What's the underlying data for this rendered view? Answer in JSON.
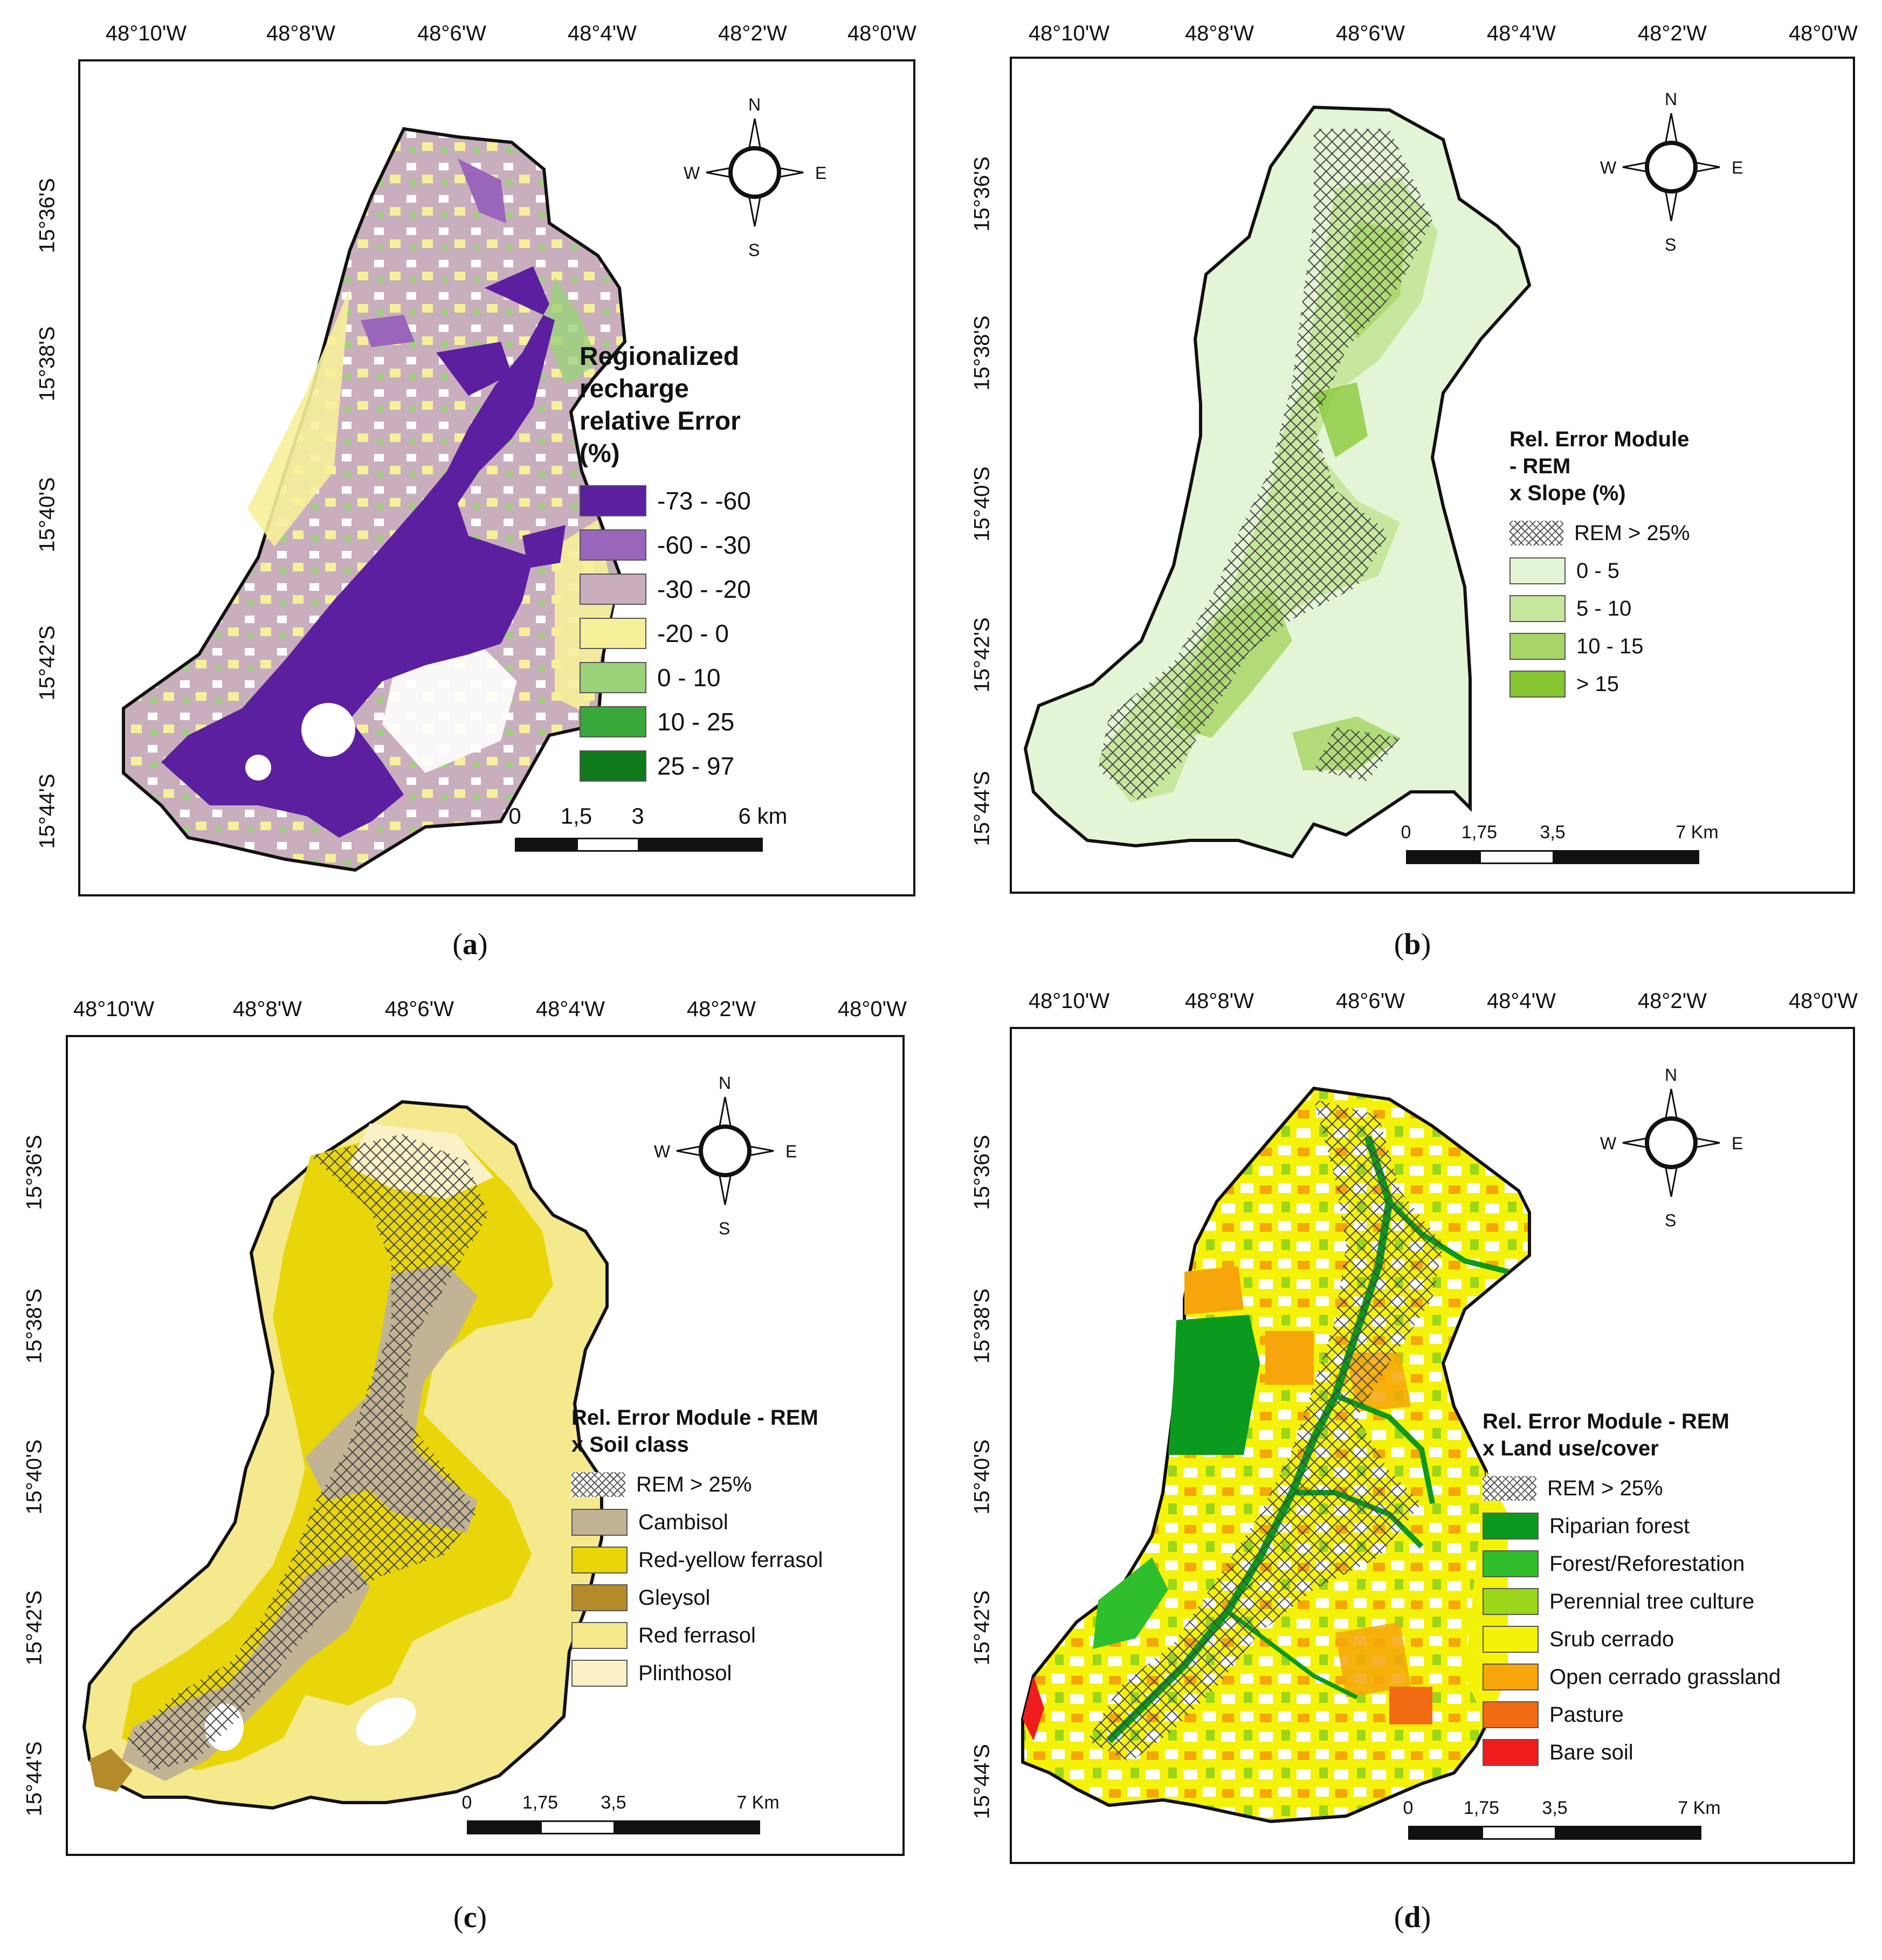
{
  "figure": {
    "longitude_ticks": [
      "48°10'W",
      "48°8'W",
      "48°6'W",
      "48°4'W",
      "48°2'W",
      "48°0'W"
    ],
    "latitude_ticks": [
      "15°36'S",
      "15°38'S",
      "15°40'S",
      "15°42'S",
      "15°44'S"
    ],
    "compass": {
      "n": "N",
      "s": "S",
      "e": "E",
      "w": "W"
    },
    "hatch_label": "REM > 25%"
  },
  "panels": {
    "a": {
      "label": "a",
      "legend_title_line1": "Regionalized recharge",
      "legend_title_line2": "relative Error (%)",
      "legend": [
        {
          "label": "-73 - -60",
          "color": "#5b1fa0"
        },
        {
          "label": "-60 - -30",
          "color": "#9966bb"
        },
        {
          "label": "-30 - -20",
          "color": "#c9aebd"
        },
        {
          "label": "-20 - 0",
          "color": "#f7f09a"
        },
        {
          "label": "0 - 10",
          "color": "#9cd27a"
        },
        {
          "label": "10 - 25",
          "color": "#39a83a"
        },
        {
          "label": "25 - 97",
          "color": "#0f7a1c"
        }
      ],
      "scale_labels": [
        "0",
        "1,5",
        "3",
        "6 km"
      ]
    },
    "b": {
      "label": "b",
      "legend_title_line1": "Rel. Error Module - REM",
      "legend_title_line2": "x Slope (%)",
      "legend": [
        {
          "label": "0 - 5",
          "color": "#e4f5d6"
        },
        {
          "label": "5 - 10",
          "color": "#c7e79e"
        },
        {
          "label": "10 - 15",
          "color": "#a7d667"
        },
        {
          "label": "> 15",
          "color": "#86c632"
        }
      ],
      "scale_labels": [
        "0",
        "1,75",
        "3,5",
        "7 Km"
      ]
    },
    "c": {
      "label": "c",
      "legend_title_line1": "Rel. Error Module - REM",
      "legend_title_line2": "x Soil class",
      "legend": [
        {
          "label": "Cambisol",
          "color": "#c2b394"
        },
        {
          "label": "Red-yellow ferrasol",
          "color": "#e8d60a"
        },
        {
          "label": "Gleysol",
          "color": "#b58a2a"
        },
        {
          "label": "Red ferrasol",
          "color": "#f5e98d"
        },
        {
          "label": "Plinthosol",
          "color": "#fbf1c6"
        }
      ],
      "scale_labels": [
        "0",
        "1,75",
        "3,5",
        "7 Km"
      ]
    },
    "d": {
      "label": "d",
      "legend_title_line1": "Rel. Error Module - REM",
      "legend_title_line2": "x Land use/cover",
      "legend": [
        {
          "label": "Riparian forest",
          "color": "#0b9a1e"
        },
        {
          "label": "Forest/Reforestation",
          "color": "#2fbf2c"
        },
        {
          "label": "Perennial tree culture",
          "color": "#9ad61a"
        },
        {
          "label": "Srub cerrado",
          "color": "#f5f20a"
        },
        {
          "label": "Open cerrado grassland",
          "color": "#f6a60a"
        },
        {
          "label": "Pasture",
          "color": "#f26a12"
        },
        {
          "label": "Bare soil",
          "color": "#ee1c1c"
        }
      ],
      "scale_labels": [
        "0",
        "1,75",
        "3,5",
        "7 Km"
      ]
    }
  }
}
